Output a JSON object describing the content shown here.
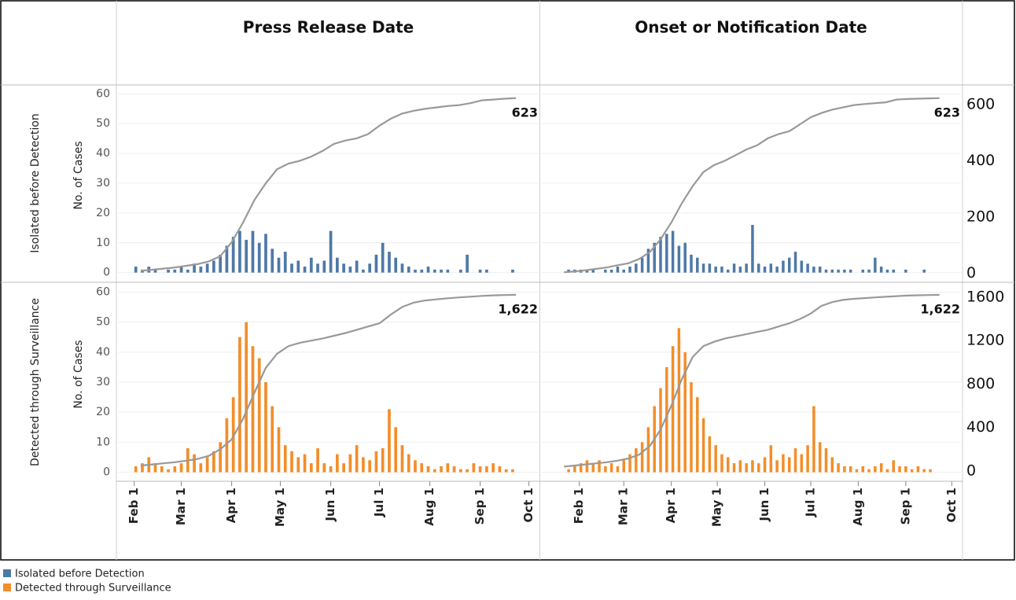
{
  "chart_data": {
    "type": "bar-line-panels",
    "columns": [
      {
        "title": "Press Release Date",
        "xlim": [
          22,
          281
        ]
      },
      {
        "title": "Onset or Notification Date",
        "xlim": [
          7,
          281
        ]
      }
    ],
    "xticks": [
      {
        "value": 32,
        "label": "Feb 1"
      },
      {
        "value": 61,
        "label": "Mar 1"
      },
      {
        "value": 92,
        "label": "Apr 1"
      },
      {
        "value": 122,
        "label": "May 1"
      },
      {
        "value": 153,
        "label": "Jun 1"
      },
      {
        "value": 183,
        "label": "Jul 1"
      },
      {
        "value": 214,
        "label": "Aug 1"
      },
      {
        "value": 245,
        "label": "Sep 1"
      },
      {
        "value": 275,
        "label": "Oct 1"
      }
    ],
    "bar_x": [
      25,
      29,
      33,
      37,
      41,
      45,
      49,
      53,
      57,
      61,
      65,
      69,
      73,
      77,
      81,
      85,
      89,
      93,
      97,
      101,
      105,
      109,
      113,
      117,
      121,
      125,
      129,
      133,
      137,
      141,
      145,
      149,
      153,
      157,
      161,
      165,
      169,
      173,
      177,
      181,
      185,
      189,
      193,
      197,
      201,
      205,
      209,
      213,
      217,
      221,
      225,
      229,
      233,
      237,
      241,
      245,
      249,
      253,
      257,
      261,
      265,
      269
    ],
    "line_x": [
      22,
      29,
      36,
      43,
      50,
      57,
      64,
      71,
      78,
      85,
      92,
      99,
      106,
      113,
      120,
      127,
      134,
      141,
      148,
      155,
      162,
      169,
      176,
      183,
      190,
      197,
      204,
      211,
      218,
      225,
      232,
      239,
      246,
      253,
      260,
      267
    ],
    "grid": true,
    "line_color": "#999999",
    "rows": [
      {
        "title": "Isolated before Detection",
        "color": "#4e79a7",
        "y_label": "No. of Cases",
        "ylim": [
          -3,
          63
        ],
        "yticks": [
          0,
          10,
          20,
          30,
          40,
          50,
          60
        ],
        "y2lim": [
          -30,
          670
        ],
        "y2ticks": [
          0,
          200,
          400,
          600
        ],
        "end_label": "623",
        "panels": [
          {
            "values": [
              null,
              null,
              2,
              1,
              2,
              1,
              0,
              1,
              1,
              2,
              1,
              3,
              2,
              3,
              4,
              6,
              9,
              12,
              14,
              11,
              14,
              10,
              13,
              8,
              5,
              7,
              3,
              4,
              2,
              5,
              3,
              4,
              14,
              5,
              3,
              2,
              4,
              1,
              3,
              6,
              10,
              7,
              5,
              3,
              2,
              1,
              1,
              2,
              1,
              1,
              1,
              0,
              1,
              6,
              0,
              1,
              1,
              0,
              0,
              0,
              1,
              0
            ],
            "line_values": [
              null,
              null,
              8,
              12,
              16,
              20,
              26,
              32,
              42,
              60,
              110,
              180,
              260,
              320,
              370,
              390,
              400,
              415,
              435,
              460,
              472,
              480,
              495,
              525,
              550,
              568,
              578,
              585,
              590,
              595,
              598,
              605,
              615,
              618,
              621,
              623
            ]
          },
          {
            "values": [
              1,
              1,
              1,
              1,
              1,
              0,
              1,
              1,
              2,
              1,
              2,
              3,
              5,
              8,
              10,
              12,
              13,
              14,
              9,
              10,
              6,
              5,
              3,
              3,
              2,
              2,
              1,
              3,
              2,
              3,
              16,
              3,
              2,
              3,
              2,
              4,
              5,
              7,
              4,
              3,
              2,
              2,
              1,
              1,
              1,
              1,
              1,
              0,
              1,
              1,
              5,
              2,
              1,
              1,
              0,
              1,
              0,
              0,
              1,
              0,
              0,
              0
            ],
            "line_values": [
              3,
              6,
              10,
              15,
              20,
              28,
              35,
              50,
              75,
              120,
              180,
              250,
              310,
              360,
              385,
              400,
              420,
              440,
              455,
              480,
              495,
              505,
              530,
              555,
              570,
              582,
              590,
              598,
              602,
              605,
              608,
              618,
              620,
              621,
              622,
              623
            ]
          }
        ]
      },
      {
        "title": "Detected through Surveillance",
        "color": "#f28e2b",
        "y_label": "No. of Cases",
        "ylim": [
          -3,
          63
        ],
        "yticks": [
          0,
          10,
          20,
          30,
          40,
          50,
          60
        ],
        "y2lim": [
          -95,
          1730
        ],
        "y2ticks": [
          0,
          400,
          800,
          1200,
          1600
        ],
        "end_label": "1,622",
        "panels": [
          {
            "values": [
              null,
              null,
              2,
              3,
              5,
              3,
              2,
              1,
              2,
              3,
              8,
              6,
              3,
              5,
              7,
              10,
              18,
              25,
              45,
              50,
              42,
              38,
              30,
              22,
              15,
              9,
              7,
              5,
              6,
              3,
              8,
              3,
              2,
              6,
              3,
              6,
              9,
              5,
              4,
              7,
              8,
              21,
              15,
              9,
              6,
              4,
              3,
              2,
              1,
              2,
              3,
              2,
              1,
              1,
              3,
              2,
              2,
              3,
              2,
              1,
              1,
              0
            ],
            "line_values": [
              null,
              null,
              50,
              60,
              70,
              80,
              95,
              110,
              140,
              200,
              290,
              480,
              720,
              950,
              1080,
              1150,
              1180,
              1200,
              1220,
              1245,
              1270,
              1300,
              1330,
              1360,
              1440,
              1510,
              1550,
              1570,
              1580,
              1590,
              1598,
              1605,
              1612,
              1617,
              1620,
              1622
            ]
          },
          {
            "values": [
              1,
              2,
              3,
              4,
              3,
              4,
              2,
              3,
              2,
              4,
              6,
              8,
              10,
              15,
              22,
              28,
              35,
              42,
              48,
              40,
              30,
              25,
              18,
              12,
              9,
              6,
              5,
              3,
              4,
              3,
              4,
              3,
              5,
              9,
              4,
              6,
              5,
              8,
              6,
              9,
              22,
              10,
              8,
              5,
              3,
              2,
              2,
              1,
              2,
              1,
              2,
              3,
              1,
              4,
              2,
              2,
              1,
              2,
              1,
              1,
              0,
              0
            ],
            "line_values": [
              40,
              50,
              60,
              70,
              80,
              95,
              115,
              150,
              230,
              380,
              600,
              850,
              1050,
              1150,
              1190,
              1220,
              1240,
              1260,
              1280,
              1300,
              1330,
              1360,
              1400,
              1450,
              1520,
              1555,
              1575,
              1585,
              1592,
              1598,
              1604,
              1610,
              1615,
              1618,
              1620,
              1622
            ]
          }
        ]
      }
    ]
  }
}
